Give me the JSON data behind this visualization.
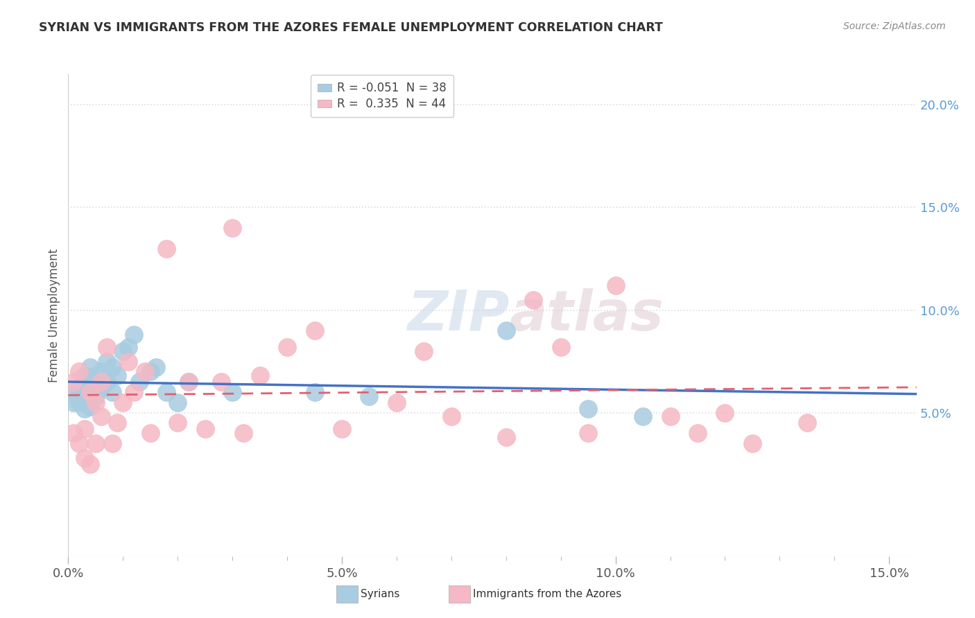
{
  "title": "SYRIAN VS IMMIGRANTS FROM THE AZORES FEMALE UNEMPLOYMENT CORRELATION CHART",
  "source": "Source: ZipAtlas.com",
  "ylabel": "Female Unemployment",
  "xlim": [
    0.0,
    0.155
  ],
  "ylim": [
    -0.02,
    0.215
  ],
  "plot_ylim": [
    -0.02,
    0.215
  ],
  "right_ytick_labels": [
    "5.0%",
    "10.0%",
    "15.0%",
    "20.0%"
  ],
  "right_ytick_values": [
    0.05,
    0.1,
    0.15,
    0.2
  ],
  "xtick_labels": [
    "0.0%",
    "",
    "",
    "",
    "",
    "5.0%",
    "",
    "",
    "",
    "",
    "10.0%",
    "",
    "",
    "",
    "",
    "15.0%"
  ],
  "xtick_values": [
    0.0,
    0.01,
    0.02,
    0.03,
    0.04,
    0.05,
    0.06,
    0.07,
    0.08,
    0.09,
    0.1,
    0.11,
    0.12,
    0.13,
    0.14,
    0.15
  ],
  "xtick_major_labels": [
    "0.0%",
    "5.0%",
    "10.0%",
    "15.0%"
  ],
  "xtick_major_values": [
    0.0,
    0.05,
    0.1,
    0.15
  ],
  "blue_color": "#a8cce0",
  "pink_color": "#f5b8c4",
  "blue_fill": "#a8cce0",
  "pink_fill": "#f5b8c4",
  "blue_line_color": "#4472c4",
  "pink_line_color": "#e06070",
  "legend_blue_R": "-0.051",
  "legend_blue_N": "38",
  "legend_pink_R": "0.335",
  "legend_pink_N": "44",
  "watermark_zip": "ZIP",
  "watermark_atlas": "atlas",
  "grid_color": "#dddddd",
  "syrians_x": [
    0.001,
    0.001,
    0.002,
    0.002,
    0.002,
    0.003,
    0.003,
    0.003,
    0.003,
    0.004,
    0.004,
    0.004,
    0.004,
    0.005,
    0.005,
    0.005,
    0.006,
    0.006,
    0.007,
    0.007,
    0.008,
    0.008,
    0.009,
    0.01,
    0.011,
    0.012,
    0.013,
    0.015,
    0.016,
    0.018,
    0.02,
    0.022,
    0.03,
    0.045,
    0.055,
    0.08,
    0.095,
    0.105
  ],
  "syrians_y": [
    0.055,
    0.06,
    0.062,
    0.055,
    0.058,
    0.068,
    0.058,
    0.052,
    0.065,
    0.072,
    0.065,
    0.058,
    0.053,
    0.068,
    0.062,
    0.058,
    0.07,
    0.062,
    0.075,
    0.065,
    0.072,
    0.06,
    0.068,
    0.08,
    0.082,
    0.088,
    0.065,
    0.07,
    0.072,
    0.06,
    0.055,
    0.065,
    0.06,
    0.06,
    0.058,
    0.09,
    0.052,
    0.048
  ],
  "azores_x": [
    0.001,
    0.001,
    0.002,
    0.002,
    0.003,
    0.003,
    0.004,
    0.004,
    0.005,
    0.005,
    0.006,
    0.006,
    0.007,
    0.008,
    0.009,
    0.01,
    0.011,
    0.012,
    0.014,
    0.015,
    0.018,
    0.02,
    0.022,
    0.025,
    0.028,
    0.03,
    0.032,
    0.035,
    0.04,
    0.045,
    0.05,
    0.06,
    0.065,
    0.07,
    0.08,
    0.085,
    0.09,
    0.095,
    0.1,
    0.11,
    0.115,
    0.12,
    0.125,
    0.135
  ],
  "azores_y": [
    0.04,
    0.065,
    0.035,
    0.07,
    0.028,
    0.042,
    0.025,
    0.06,
    0.035,
    0.055,
    0.048,
    0.065,
    0.082,
    0.035,
    0.045,
    0.055,
    0.075,
    0.06,
    0.07,
    0.04,
    0.13,
    0.045,
    0.065,
    0.042,
    0.065,
    0.14,
    0.04,
    0.068,
    0.082,
    0.09,
    0.042,
    0.055,
    0.08,
    0.048,
    0.038,
    0.105,
    0.082,
    0.04,
    0.112,
    0.048,
    0.04,
    0.05,
    0.035,
    0.045
  ]
}
